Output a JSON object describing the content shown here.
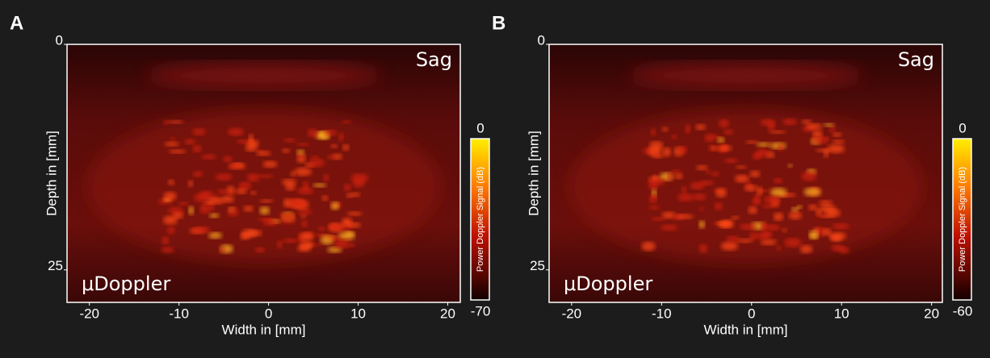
{
  "panels": [
    {
      "label": "A",
      "xlabel": "Width in [mm]",
      "ylabel": "Depth in [mm]",
      "xlim": [
        -22.5,
        21.4
      ],
      "xticks": [
        -20,
        -10,
        0,
        10,
        20
      ],
      "ylim": [
        0,
        28.6
      ],
      "yticks": [
        0,
        25
      ],
      "view": "Sag",
      "mode": "μDoppler",
      "colorbar": {
        "label": "Power Doppler Signal (dB)",
        "range": [
          -70,
          0
        ]
      }
    },
    {
      "label": "B",
      "xlabel": "Width in [mm]",
      "ylabel": "Depth in [mm]",
      "xlim": [
        -22.5,
        21.2
      ],
      "xticks": [
        -20,
        -10,
        0,
        10,
        20
      ],
      "ylim": [
        0,
        28.6
      ],
      "yticks": [
        0,
        25
      ],
      "view": "Sag",
      "mode": "μDoppler",
      "colorbar": {
        "label": "Power Doppler Signal (dB)",
        "range": [
          -60,
          0
        ]
      }
    }
  ]
}
